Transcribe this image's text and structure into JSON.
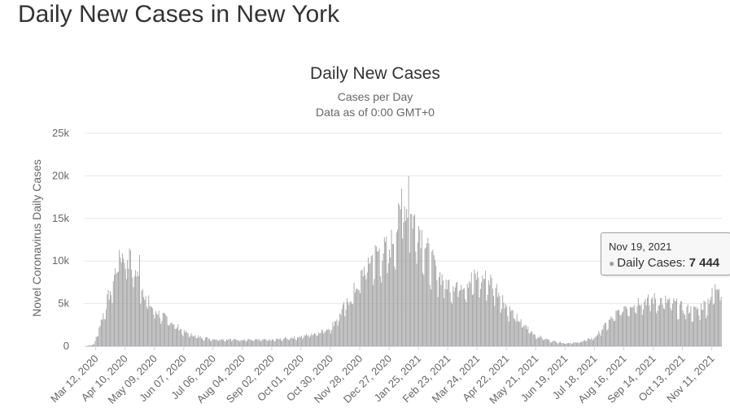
{
  "page": {
    "title": "Daily New Cases in New York"
  },
  "chart_data": {
    "type": "bar",
    "title": "Daily New Cases",
    "subtitle": "Cases per Day",
    "subtitle2": "Data as of 0:00 GMT+0",
    "xlabel": "",
    "ylabel": "Novel Coronavirus Daily Cases",
    "ylim": [
      0,
      25000
    ],
    "y_ticks": [
      0,
      5000,
      10000,
      15000,
      20000,
      25000
    ],
    "y_tick_labels": [
      "0",
      "5k",
      "10k",
      "15k",
      "20k",
      "25k"
    ],
    "x_start": "2020-03-01",
    "x_end": "2021-11-20",
    "x_tick_dates": [
      "2020-03-12",
      "2020-04-10",
      "2020-05-09",
      "2020-06-07",
      "2020-07-06",
      "2020-08-04",
      "2020-09-02",
      "2020-10-01",
      "2020-10-30",
      "2020-11-28",
      "2020-12-27",
      "2021-01-25",
      "2021-02-23",
      "2021-03-24",
      "2021-04-22",
      "2021-05-21",
      "2021-06-19",
      "2021-07-18",
      "2021-08-16",
      "2021-09-14",
      "2021-10-13",
      "2021-11-11"
    ],
    "x_tick_labels": [
      "Mar 12, 2020",
      "Apr 10, 2020",
      "May 09, 2020",
      "Jun 07, 2020",
      "Jul 06, 2020",
      "Aug 04, 2020",
      "Sep 02, 2020",
      "Oct 01, 2020",
      "Oct 30, 2020",
      "Nov 28, 2020",
      "Dec 27, 2020",
      "Jan 25, 2021",
      "Feb 23, 2021",
      "Mar 24, 2021",
      "Apr 22, 2021",
      "May 21, 2021",
      "Jun 19, 2021",
      "Jul 18, 2021",
      "Aug 16, 2021",
      "Sep 14, 2021",
      "Oct 13, 2021",
      "Nov 11, 2021"
    ],
    "series": [
      {
        "name": "Daily Cases",
        "color": "#a0a0a0",
        "values_approx_by_date": [
          {
            "date": "2020-03-01",
            "value": 0
          },
          {
            "date": "2020-03-10",
            "value": 200
          },
          {
            "date": "2020-03-20",
            "value": 4000
          },
          {
            "date": "2020-03-28",
            "value": 7000
          },
          {
            "date": "2020-04-04",
            "value": 10000
          },
          {
            "date": "2020-04-10",
            "value": 10500
          },
          {
            "date": "2020-04-15",
            "value": 9500
          },
          {
            "date": "2020-04-25",
            "value": 7000
          },
          {
            "date": "2020-05-05",
            "value": 4500
          },
          {
            "date": "2020-05-15",
            "value": 3500
          },
          {
            "date": "2020-05-25",
            "value": 2800
          },
          {
            "date": "2020-06-07",
            "value": 1600
          },
          {
            "date": "2020-06-20",
            "value": 1100
          },
          {
            "date": "2020-07-06",
            "value": 800
          },
          {
            "date": "2020-08-04",
            "value": 750
          },
          {
            "date": "2020-09-02",
            "value": 700
          },
          {
            "date": "2020-10-01",
            "value": 1100
          },
          {
            "date": "2020-10-15",
            "value": 1500
          },
          {
            "date": "2020-10-30",
            "value": 2100
          },
          {
            "date": "2020-11-10",
            "value": 4000
          },
          {
            "date": "2020-11-20",
            "value": 5800
          },
          {
            "date": "2020-11-28",
            "value": 7500
          },
          {
            "date": "2020-12-05",
            "value": 9500
          },
          {
            "date": "2020-12-15",
            "value": 10500
          },
          {
            "date": "2020-12-27",
            "value": 11000
          },
          {
            "date": "2021-01-05",
            "value": 14000
          },
          {
            "date": "2021-01-10",
            "value": 16000
          },
          {
            "date": "2021-01-18",
            "value": 14500
          },
          {
            "date": "2021-01-25",
            "value": 13500
          },
          {
            "date": "2021-02-05",
            "value": 10000
          },
          {
            "date": "2021-02-15",
            "value": 8000
          },
          {
            "date": "2021-02-23",
            "value": 7000
          },
          {
            "date": "2021-03-10",
            "value": 7200
          },
          {
            "date": "2021-03-24",
            "value": 7800
          },
          {
            "date": "2021-04-05",
            "value": 7500
          },
          {
            "date": "2021-04-15",
            "value": 6000
          },
          {
            "date": "2021-04-22",
            "value": 4500
          },
          {
            "date": "2021-05-05",
            "value": 2800
          },
          {
            "date": "2021-05-21",
            "value": 1200
          },
          {
            "date": "2021-06-05",
            "value": 600
          },
          {
            "date": "2021-06-19",
            "value": 350
          },
          {
            "date": "2021-07-01",
            "value": 400
          },
          {
            "date": "2021-07-18",
            "value": 1000
          },
          {
            "date": "2021-08-01",
            "value": 2800
          },
          {
            "date": "2021-08-16",
            "value": 4500
          },
          {
            "date": "2021-09-01",
            "value": 5200
          },
          {
            "date": "2021-09-14",
            "value": 5300
          },
          {
            "date": "2021-10-01",
            "value": 5000
          },
          {
            "date": "2021-10-13",
            "value": 4300
          },
          {
            "date": "2021-10-25",
            "value": 4000
          },
          {
            "date": "2021-11-05",
            "value": 4800
          },
          {
            "date": "2021-11-11",
            "value": 5800
          },
          {
            "date": "2021-11-19",
            "value": 7444
          }
        ],
        "peaks": [
          {
            "date": "2020-04-04",
            "value": 11300
          },
          {
            "date": "2020-04-14",
            "value": 11500
          },
          {
            "date": "2020-04-24",
            "value": 10700
          },
          {
            "date": "2021-01-08",
            "value": 18500
          },
          {
            "date": "2021-01-15",
            "value": 20000
          }
        ]
      }
    ],
    "tooltip": {
      "date": "Nov 19, 2021",
      "series_label": "Daily Cases: ",
      "value": "7 444"
    }
  }
}
